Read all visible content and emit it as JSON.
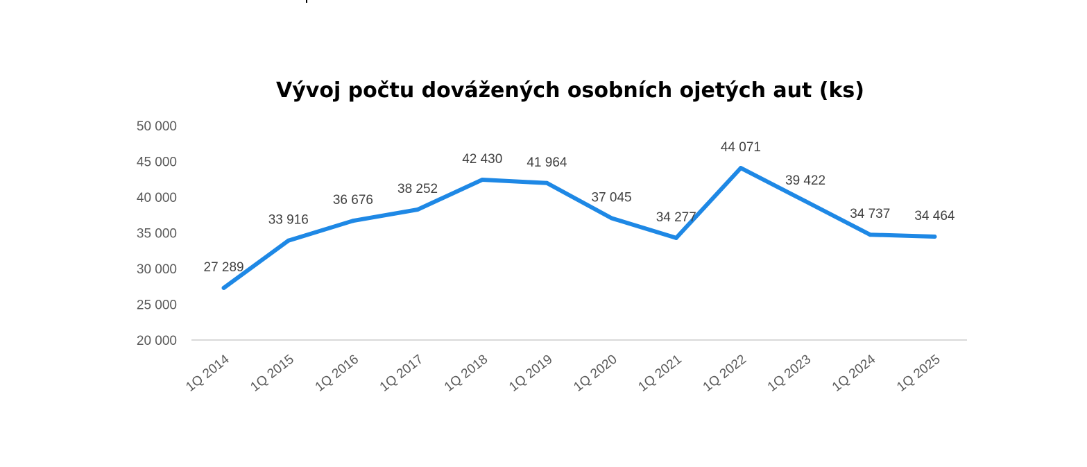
{
  "chart_data": {
    "type": "line",
    "title": "Vývoj počtu dovážených osobních ojetých aut (ks)",
    "xlabel": "",
    "ylabel": "",
    "categories": [
      "1Q 2014",
      "1Q 2015",
      "1Q 2016",
      "1Q 2017",
      "1Q 2018",
      "1Q 2019",
      "1Q 2020",
      "1Q 2021",
      "1Q 2022",
      "1Q 2023",
      "1Q 2024",
      "1Q 2025"
    ],
    "series": [
      {
        "values": [
          27289,
          33916,
          36676,
          38252,
          42430,
          41964,
          37045,
          34277,
          44071,
          39422,
          34737,
          34464
        ],
        "data_labels": [
          "27 289",
          "33 916",
          "36 676",
          "38 252",
          "42 430",
          "41 964",
          "37 045",
          "34 277",
          "44 071",
          "39 422",
          "34 737",
          "34 464"
        ],
        "color": "#1e88e5"
      }
    ],
    "ylim": [
      20000,
      50000
    ],
    "y_ticks": [
      20000,
      25000,
      30000,
      35000,
      40000,
      45000,
      50000
    ],
    "y_tick_labels": [
      "20 000",
      "25 000",
      "30 000",
      "35 000",
      "40 000",
      "45 000",
      "50 000"
    ],
    "grid": false,
    "legend": "none",
    "x_tick_rotation": "angled"
  }
}
